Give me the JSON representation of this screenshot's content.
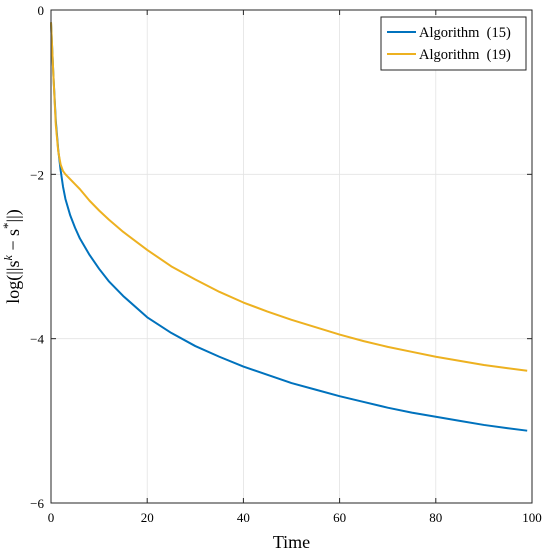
{
  "chart_data": {
    "type": "line",
    "title": "",
    "xlabel": "Time",
    "ylabel": "log(||s^k − s*||)",
    "xlim": [
      0,
      100
    ],
    "ylim": [
      -6,
      0
    ],
    "xticks": [
      0,
      20,
      40,
      60,
      80,
      100
    ],
    "yticks": [
      -6,
      -4,
      -2,
      0
    ],
    "grid": true,
    "legend_position": "top-right",
    "series": [
      {
        "name": "Algorithm  (15)",
        "color": "#0072BD",
        "x": [
          0,
          0.5,
          1,
          1.5,
          2,
          2.5,
          3,
          4,
          5,
          6,
          8,
          10,
          12,
          15,
          20,
          25,
          30,
          35,
          40,
          45,
          50,
          55,
          60,
          65,
          70,
          75,
          80,
          85,
          90,
          95,
          99
        ],
        "y": [
          -0.15,
          -0.8,
          -1.35,
          -1.7,
          -1.95,
          -2.15,
          -2.3,
          -2.5,
          -2.65,
          -2.78,
          -2.98,
          -3.15,
          -3.3,
          -3.48,
          -3.74,
          -3.93,
          -4.09,
          -4.22,
          -4.34,
          -4.44,
          -4.54,
          -4.62,
          -4.7,
          -4.77,
          -4.84,
          -4.9,
          -4.95,
          -5.0,
          -5.05,
          -5.09,
          -5.12
        ]
      },
      {
        "name": "Algorithm  (19)",
        "color": "#EDB120",
        "x": [
          0,
          0.5,
          1,
          1.5,
          2,
          2.5,
          3,
          4,
          5,
          6,
          8,
          10,
          12,
          15,
          20,
          25,
          30,
          35,
          40,
          45,
          50,
          55,
          60,
          65,
          70,
          75,
          80,
          85,
          90,
          95,
          99
        ],
        "y": [
          -0.15,
          -0.8,
          -1.4,
          -1.72,
          -1.88,
          -1.96,
          -2.0,
          -2.06,
          -2.12,
          -2.18,
          -2.32,
          -2.44,
          -2.55,
          -2.7,
          -2.92,
          -3.12,
          -3.28,
          -3.43,
          -3.56,
          -3.67,
          -3.77,
          -3.86,
          -3.95,
          -4.03,
          -4.1,
          -4.16,
          -4.22,
          -4.27,
          -4.32,
          -4.36,
          -4.39
        ]
      }
    ]
  }
}
